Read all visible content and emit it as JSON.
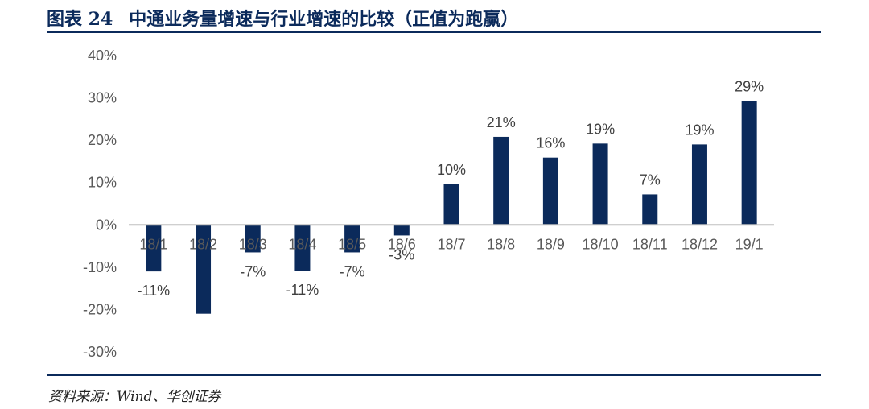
{
  "header": {
    "figure_number": "图表 24",
    "title": "中通业务量增速与行业增速的比较（正值为跑赢）"
  },
  "footer": {
    "source": "资料来源：Wind、华创证券"
  },
  "colors": {
    "bar": "#0b2a5b",
    "rule": "#0b2a5b",
    "axis": "#bfbfbf"
  },
  "chart_data": {
    "type": "bar",
    "title": "",
    "xlabel": "",
    "ylabel": "",
    "categories": [
      "18/1",
      "18/2",
      "18/3",
      "18/4",
      "18/5",
      "18/6",
      "18/7",
      "18/8",
      "18/9",
      "18/10",
      "18/11",
      "18/12",
      "19/1"
    ],
    "values": [
      -11,
      -21,
      -6.5,
      -10.8,
      -6.5,
      -2.5,
      9.6,
      20.8,
      15.9,
      19.2,
      7.2,
      19,
      29.3
    ],
    "data_labels": [
      "-11%",
      "",
      "-7%",
      "-11%",
      "-7%",
      "-3%",
      "10%",
      "21%",
      "16%",
      "19%",
      "7%",
      "19%",
      "29%"
    ],
    "y_ticks": [
      40,
      30,
      20,
      10,
      0,
      -10,
      -20,
      -30
    ],
    "y_tick_labels": [
      "40%",
      "30%",
      "20%",
      "10%",
      "0%",
      "-10%",
      "-20%",
      "-30%"
    ],
    "ylim": [
      -30,
      40
    ],
    "grid": false,
    "legend": "none"
  }
}
